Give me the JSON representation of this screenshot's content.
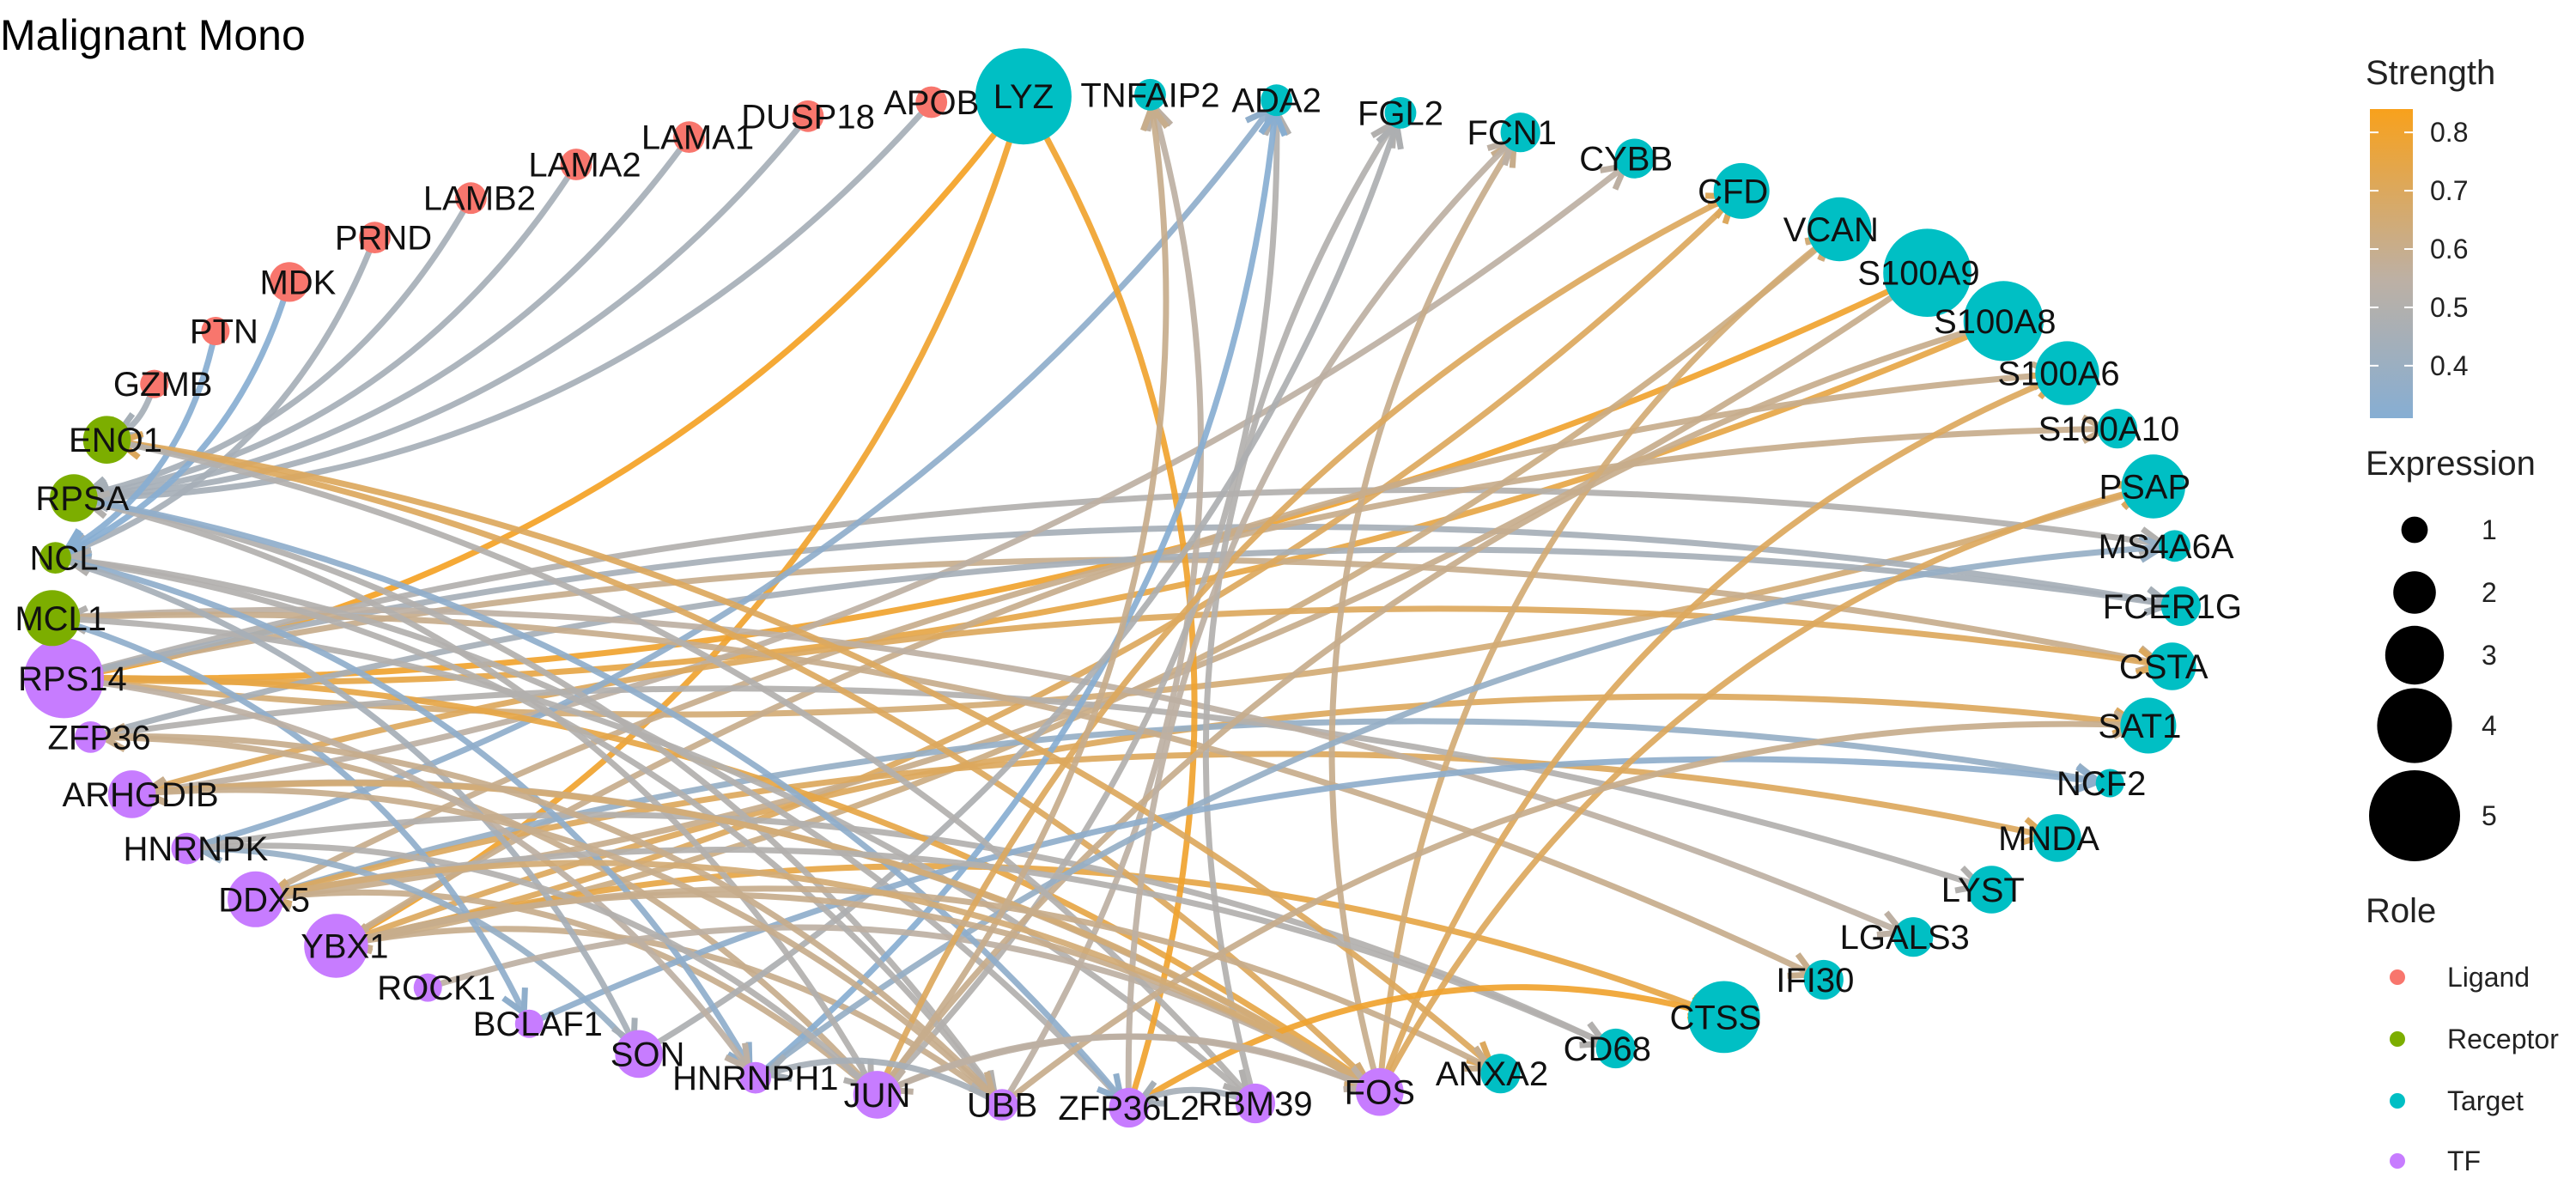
{
  "title": "Malignant Mono",
  "colors": {
    "Ligand": "#F8766D",
    "Receptor": "#7CAE00",
    "Target": "#00BFC4",
    "TF": "#C77CFF",
    "strength_low": "#86AED3",
    "strength_mid": "#BDB0A4",
    "strength_high": "#F8A11C"
  },
  "nodes": [
    {
      "name": "LYZ",
      "role": "Target",
      "expr": 5
    },
    {
      "name": "TNFAIP2",
      "role": "Target",
      "expr": 1
    },
    {
      "name": "ADA2",
      "role": "Target",
      "expr": 1
    },
    {
      "name": "FGL2",
      "role": "Target",
      "expr": 1
    },
    {
      "name": "FCN1",
      "role": "Target",
      "expr": 1.5
    },
    {
      "name": "CYBB",
      "role": "Target",
      "expr": 1.5
    },
    {
      "name": "CFD",
      "role": "Target",
      "expr": 2.5
    },
    {
      "name": "VCAN",
      "role": "Target",
      "expr": 3
    },
    {
      "name": "S100A9",
      "role": "Target",
      "expr": 4.5
    },
    {
      "name": "S100A8",
      "role": "Target",
      "expr": 4
    },
    {
      "name": "S100A6",
      "role": "Target",
      "expr": 3
    },
    {
      "name": "S100A10",
      "role": "Target",
      "expr": 1.5
    },
    {
      "name": "PSAP",
      "role": "Target",
      "expr": 3
    },
    {
      "name": "MS4A6A",
      "role": "Target",
      "expr": 1
    },
    {
      "name": "FCER1G",
      "role": "Target",
      "expr": 1.5
    },
    {
      "name": "CSTA",
      "role": "Target",
      "expr": 2
    },
    {
      "name": "SAT1",
      "role": "Target",
      "expr": 2.5
    },
    {
      "name": "NCF2",
      "role": "Target",
      "expr": 0.8
    },
    {
      "name": "MNDA",
      "role": "Target",
      "expr": 2
    },
    {
      "name": "LYST",
      "role": "Target",
      "expr": 2
    },
    {
      "name": "LGALS3",
      "role": "Target",
      "expr": 1.5
    },
    {
      "name": "IFI30",
      "role": "Target",
      "expr": 1.5
    },
    {
      "name": "CTSS",
      "role": "Target",
      "expr": 3.5
    },
    {
      "name": "CD68",
      "role": "Target",
      "expr": 1.5
    },
    {
      "name": "ANXA2",
      "role": "Target",
      "expr": 1.5
    },
    {
      "name": "FOS",
      "role": "TF",
      "expr": 2
    },
    {
      "name": "RBM39",
      "role": "TF",
      "expr": 1.5
    },
    {
      "name": "ZFP36L2",
      "role": "TF",
      "expr": 1.5
    },
    {
      "name": "UBB",
      "role": "TF",
      "expr": 1
    },
    {
      "name": "JUN",
      "role": "TF",
      "expr": 2
    },
    {
      "name": "HNRNPH1",
      "role": "TF",
      "expr": 1
    },
    {
      "name": "SON",
      "role": "TF",
      "expr": 2
    },
    {
      "name": "BCLAF1",
      "role": "TF",
      "expr": 0.8
    },
    {
      "name": "ROCK1",
      "role": "TF",
      "expr": 0.8
    },
    {
      "name": "YBX1",
      "role": "TF",
      "expr": 3
    },
    {
      "name": "DDX5",
      "role": "TF",
      "expr": 2.5
    },
    {
      "name": "HNRNPK",
      "role": "TF",
      "expr": 1
    },
    {
      "name": "ARHGDIB",
      "role": "TF",
      "expr": 2
    },
    {
      "name": "ZFP36",
      "role": "TF",
      "expr": 1
    },
    {
      "name": "RPS14",
      "role": "TF",
      "expr": 4
    },
    {
      "name": "MCL1",
      "role": "Receptor",
      "expr": 2.5
    },
    {
      "name": "NCL",
      "role": "Receptor",
      "expr": 1
    },
    {
      "name": "RPSA",
      "role": "Receptor",
      "expr": 2
    },
    {
      "name": "ENO1",
      "role": "Receptor",
      "expr": 2
    },
    {
      "name": "GZMB",
      "role": "Ligand",
      "expr": 0.8
    },
    {
      "name": "PTN",
      "role": "Ligand",
      "expr": 0.8
    },
    {
      "name": "MDK",
      "role": "Ligand",
      "expr": 1.5
    },
    {
      "name": "PRND",
      "role": "Ligand",
      "expr": 1
    },
    {
      "name": "LAMB2",
      "role": "Ligand",
      "expr": 1
    },
    {
      "name": "LAMA2",
      "role": "Ligand",
      "expr": 1
    },
    {
      "name": "LAMA1",
      "role": "Ligand",
      "expr": 1
    },
    {
      "name": "DUSP18",
      "role": "Ligand",
      "expr": 1
    },
    {
      "name": "APOB",
      "role": "Ligand",
      "expr": 1
    }
  ],
  "edges": [
    {
      "from": "APOB",
      "to": "RPSA",
      "s": 0.45
    },
    {
      "from": "DUSP18",
      "to": "RPSA",
      "s": 0.45
    },
    {
      "from": "LAMA1",
      "to": "RPSA",
      "s": 0.45
    },
    {
      "from": "LAMA2",
      "to": "RPSA",
      "s": 0.45
    },
    {
      "from": "LAMB2",
      "to": "RPSA",
      "s": 0.45
    },
    {
      "from": "PRND",
      "to": "NCL",
      "s": 0.45
    },
    {
      "from": "MDK",
      "to": "NCL",
      "s": 0.32
    },
    {
      "from": "PTN",
      "to": "NCL",
      "s": 0.32
    },
    {
      "from": "GZMB",
      "to": "ENO1",
      "s": 0.45
    },
    {
      "from": "RPS14",
      "to": "LYZ",
      "s": 0.82
    },
    {
      "from": "RPS14",
      "to": "S100A9",
      "s": 0.8
    },
    {
      "from": "RPS14",
      "to": "S100A8",
      "s": 0.75
    },
    {
      "from": "RPS14",
      "to": "PSAP",
      "s": 0.65
    },
    {
      "from": "RPS14",
      "to": "CSTA",
      "s": 0.6
    },
    {
      "from": "RPS14",
      "to": "MS4A6A",
      "s": 0.5
    },
    {
      "from": "RPS14",
      "to": "FCER1G",
      "s": 0.45
    },
    {
      "from": "YBX1",
      "to": "LYZ",
      "s": 0.8
    },
    {
      "from": "YBX1",
      "to": "CFD",
      "s": 0.7
    },
    {
      "from": "YBX1",
      "to": "VCAN",
      "s": 0.62
    },
    {
      "from": "YBX1",
      "to": "S100A6",
      "s": 0.6
    },
    {
      "from": "YBX1",
      "to": "SAT1",
      "s": 0.7
    },
    {
      "from": "YBX1",
      "to": "CTSS",
      "s": 0.75
    },
    {
      "from": "DDX5",
      "to": "S100A9",
      "s": 0.6
    },
    {
      "from": "DDX5",
      "to": "S100A10",
      "s": 0.6
    },
    {
      "from": "DDX5",
      "to": "NCF2",
      "s": 0.38
    },
    {
      "from": "DDX5",
      "to": "MNDA",
      "s": 0.7
    },
    {
      "from": "ARHGDIB",
      "to": "CYBB",
      "s": 0.55
    },
    {
      "from": "ARHGDIB",
      "to": "CSTA",
      "s": 0.7
    },
    {
      "from": "ZFP36",
      "to": "FCER1G",
      "s": 0.45
    },
    {
      "from": "ZFP36",
      "to": "LYST",
      "s": 0.5
    },
    {
      "from": "HNRNPK",
      "to": "ADA2",
      "s": 0.35
    },
    {
      "from": "HNRNPK",
      "to": "CD68",
      "s": 0.5
    },
    {
      "from": "MCL1",
      "to": "LGALS3",
      "s": 0.55
    },
    {
      "from": "MCL1",
      "to": "IFI30",
      "s": 0.6
    },
    {
      "from": "FOS",
      "to": "FCN1",
      "s": 0.6
    },
    {
      "from": "FOS",
      "to": "VCAN",
      "s": 0.65
    },
    {
      "from": "FOS",
      "to": "ENO1",
      "s": 0.7
    },
    {
      "from": "FOS",
      "to": "RPS14",
      "s": 0.75
    },
    {
      "from": "FOS",
      "to": "ARHGDIB",
      "s": 0.6
    },
    {
      "from": "RBM39",
      "to": "FGL2",
      "s": 0.5
    },
    {
      "from": "RBM39",
      "to": "MCL1",
      "s": 0.5
    },
    {
      "from": "ZFP36L2",
      "to": "LYZ",
      "s": 0.8
    },
    {
      "from": "ZFP36L2",
      "to": "NCL",
      "s": 0.5
    },
    {
      "from": "UBB",
      "to": "TNFAIP2",
      "s": 0.55
    },
    {
      "from": "UBB",
      "to": "RPSA",
      "s": 0.5
    },
    {
      "from": "UBB",
      "to": "YBX1",
      "s": 0.6
    },
    {
      "from": "JUN",
      "to": "ADA2",
      "s": 0.5
    },
    {
      "from": "JUN",
      "to": "S100A8",
      "s": 0.6
    },
    {
      "from": "JUN",
      "to": "ZFP36",
      "s": 0.6
    },
    {
      "from": "JUN",
      "to": "DDX5",
      "s": 0.6
    },
    {
      "from": "HNRNPH1",
      "to": "ADA2",
      "s": 0.32
    },
    {
      "from": "HNRNPH1",
      "to": "MS4A6A",
      "s": 0.38
    },
    {
      "from": "SON",
      "to": "FGL2",
      "s": 0.48
    },
    {
      "from": "SON",
      "to": "HNRNPK",
      "s": 0.38
    },
    {
      "from": "BCLAF1",
      "to": "NCF2",
      "s": 0.35
    },
    {
      "from": "ROCK1",
      "to": "FOS",
      "s": 0.55
    },
    {
      "from": "ENO1",
      "to": "ANXA2",
      "s": 0.7
    },
    {
      "from": "ENO1",
      "to": "RBM39",
      "s": 0.5
    },
    {
      "from": "NCL",
      "to": "UBB",
      "s": 0.5
    },
    {
      "from": "NCL",
      "to": "HNRNPH1",
      "s": 0.35
    },
    {
      "from": "NCL",
      "to": "SON",
      "s": 0.45
    },
    {
      "from": "RPSA",
      "to": "JUN",
      "s": 0.5
    },
    {
      "from": "RPSA",
      "to": "ZFP36L2",
      "s": 0.35
    },
    {
      "from": "MCL1",
      "to": "BCLAF1",
      "s": 0.35
    },
    {
      "from": "ARHGDIB",
      "to": "FOS",
      "s": 0.65
    },
    {
      "from": "YBX1",
      "to": "ANXA2",
      "s": 0.6
    },
    {
      "from": "DDX5",
      "to": "CD68",
      "s": 0.5
    },
    {
      "from": "RPS14",
      "to": "HNRNPH1",
      "s": 0.55
    },
    {
      "from": "ZFP36",
      "to": "UBB",
      "s": 0.6
    },
    {
      "from": "HNRNPK",
      "to": "JUN",
      "s": 0.5
    },
    {
      "from": "FOS",
      "to": "S100A6",
      "s": 0.7
    },
    {
      "from": "FOS",
      "to": "PSAP",
      "s": 0.7
    },
    {
      "from": "JUN",
      "to": "CFD",
      "s": 0.7
    },
    {
      "from": "UBB",
      "to": "SAT1",
      "s": 0.6
    },
    {
      "from": "ZFP36L2",
      "to": "CTSS",
      "s": 0.8
    },
    {
      "from": "ZFP36L2",
      "to": "FCN1",
      "s": 0.55
    },
    {
      "from": "JUN",
      "to": "TNFAIP2",
      "s": 0.6
    },
    {
      "from": "FOS",
      "to": "YBX1",
      "s": 0.6
    },
    {
      "from": "FOS",
      "to": "DDX5",
      "s": 0.65
    },
    {
      "from": "UBB",
      "to": "ARHGDIB",
      "s": 0.6
    },
    {
      "from": "FOS",
      "to": "JUN",
      "s": 0.55
    },
    {
      "from": "JUN",
      "to": "FOS",
      "s": 0.55
    },
    {
      "from": "UBB",
      "to": "HNRNPH1",
      "s": 0.45
    },
    {
      "from": "RBM39",
      "to": "ZFP36L2",
      "s": 0.45
    }
  ],
  "legend": {
    "strength_title": "Strength",
    "strength_ticks": [
      {
        "label": "0.8",
        "v": 0.8
      },
      {
        "label": "0.7",
        "v": 0.7
      },
      {
        "label": "0.6",
        "v": 0.6
      },
      {
        "label": "0.5",
        "v": 0.5
      },
      {
        "label": "0.4",
        "v": 0.4
      }
    ],
    "strength_range": [
      0.31,
      0.84
    ],
    "expression_title": "Expression",
    "expression_items": [
      {
        "label": "1",
        "v": 1
      },
      {
        "label": "2",
        "v": 2
      },
      {
        "label": "3",
        "v": 3
      },
      {
        "label": "4",
        "v": 4
      },
      {
        "label": "5",
        "v": 5
      }
    ],
    "role_title": "Role",
    "role_items": [
      {
        "label": "Ligand",
        "role": "Ligand"
      },
      {
        "label": "Receptor",
        "role": "Receptor"
      },
      {
        "label": "Target",
        "role": "Target"
      },
      {
        "label": "TF",
        "role": "TF"
      }
    ]
  }
}
